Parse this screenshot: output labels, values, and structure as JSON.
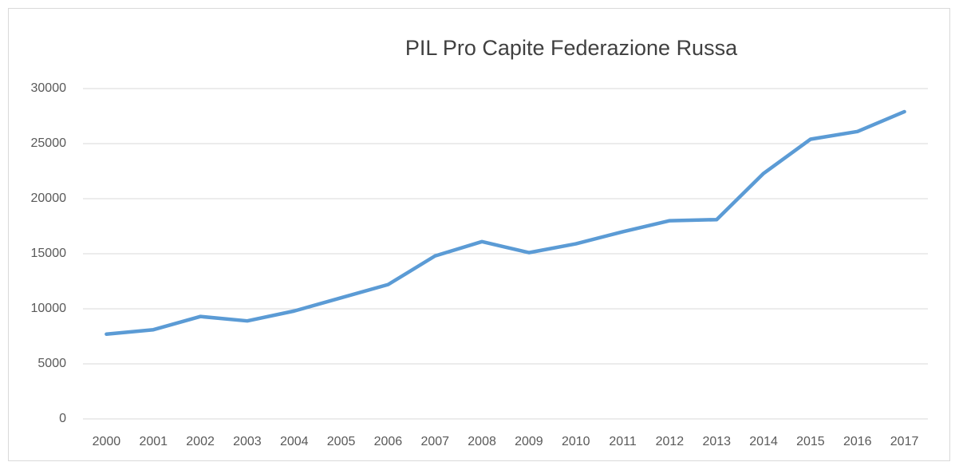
{
  "chart_data": {
    "type": "line",
    "title": "PIL Pro Capite Federazione Russa",
    "categories": [
      "2000",
      "2001",
      "2002",
      "2003",
      "2004",
      "2005",
      "2006",
      "2007",
      "2008",
      "2009",
      "2010",
      "2011",
      "2012",
      "2013",
      "2014",
      "2015",
      "2016",
      "2017"
    ],
    "values": [
      7700,
      8100,
      9300,
      8900,
      9800,
      11000,
      12200,
      14800,
      16100,
      15100,
      15900,
      17000,
      18000,
      18100,
      22300,
      25400,
      26100,
      27900
    ],
    "color": "#5b9bd5",
    "ylim": [
      0,
      30000
    ],
    "yticks": [
      0,
      5000,
      10000,
      15000,
      20000,
      25000,
      30000
    ],
    "grid": true
  }
}
